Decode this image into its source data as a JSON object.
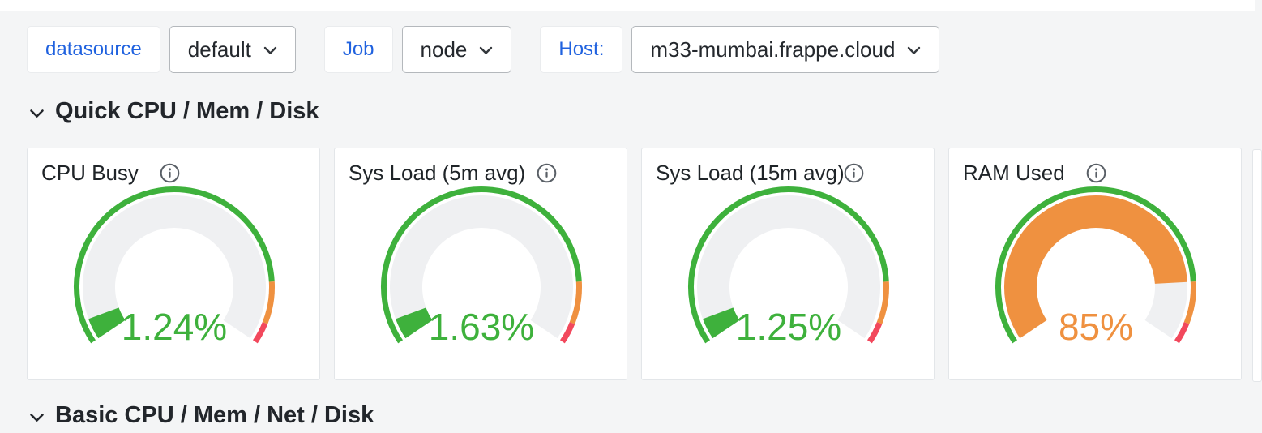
{
  "toolbar": {
    "variables": [
      {
        "label": "datasource",
        "value": "default"
      },
      {
        "label": "Job",
        "value": "node"
      },
      {
        "label": "Host:",
        "value": "m33-mumbai.frappe.cloud"
      }
    ]
  },
  "sections": {
    "quick": {
      "title": "Quick CPU / Mem / Disk"
    },
    "basic": {
      "title": "Basic CPU / Mem / Net / Disk"
    }
  },
  "colors": {
    "green": "#3eb13c",
    "orange": "#ef9140",
    "red": "#f2485c",
    "blue": "#2062df",
    "gauge_track": "#eff0f2",
    "panel_bg": "#ffffff",
    "page_bg": "#f4f5f6"
  },
  "chart_data": [
    {
      "type": "gauge",
      "title": "CPU Busy",
      "value": 1.24,
      "display": "1.24%",
      "min": 0,
      "max": 100,
      "value_color": "#3eb13c",
      "thresholds": [
        {
          "from": 0,
          "to": 85,
          "color": "#3eb13c"
        },
        {
          "from": 85,
          "to": 95,
          "color": "#ef9140"
        },
        {
          "from": 95,
          "to": 100,
          "color": "#f2485c"
        }
      ]
    },
    {
      "type": "gauge",
      "title": "Sys Load (5m avg)",
      "value": 1.63,
      "display": "1.63%",
      "min": 0,
      "max": 100,
      "value_color": "#3eb13c",
      "thresholds": [
        {
          "from": 0,
          "to": 85,
          "color": "#3eb13c"
        },
        {
          "from": 85,
          "to": 95,
          "color": "#ef9140"
        },
        {
          "from": 95,
          "to": 100,
          "color": "#f2485c"
        }
      ]
    },
    {
      "type": "gauge",
      "title": "Sys Load (15m avg)",
      "value": 1.25,
      "display": "1.25%",
      "min": 0,
      "max": 100,
      "value_color": "#3eb13c",
      "thresholds": [
        {
          "from": 0,
          "to": 85,
          "color": "#3eb13c"
        },
        {
          "from": 85,
          "to": 95,
          "color": "#ef9140"
        },
        {
          "from": 95,
          "to": 100,
          "color": "#f2485c"
        }
      ]
    },
    {
      "type": "gauge",
      "title": "RAM Used",
      "value": 85,
      "display": "85%",
      "min": 0,
      "max": 100,
      "value_color": "#ef9140",
      "thresholds": [
        {
          "from": 0,
          "to": 85,
          "color": "#3eb13c"
        },
        {
          "from": 85,
          "to": 95,
          "color": "#ef9140"
        },
        {
          "from": 95,
          "to": 100,
          "color": "#f2485c"
        }
      ]
    }
  ]
}
